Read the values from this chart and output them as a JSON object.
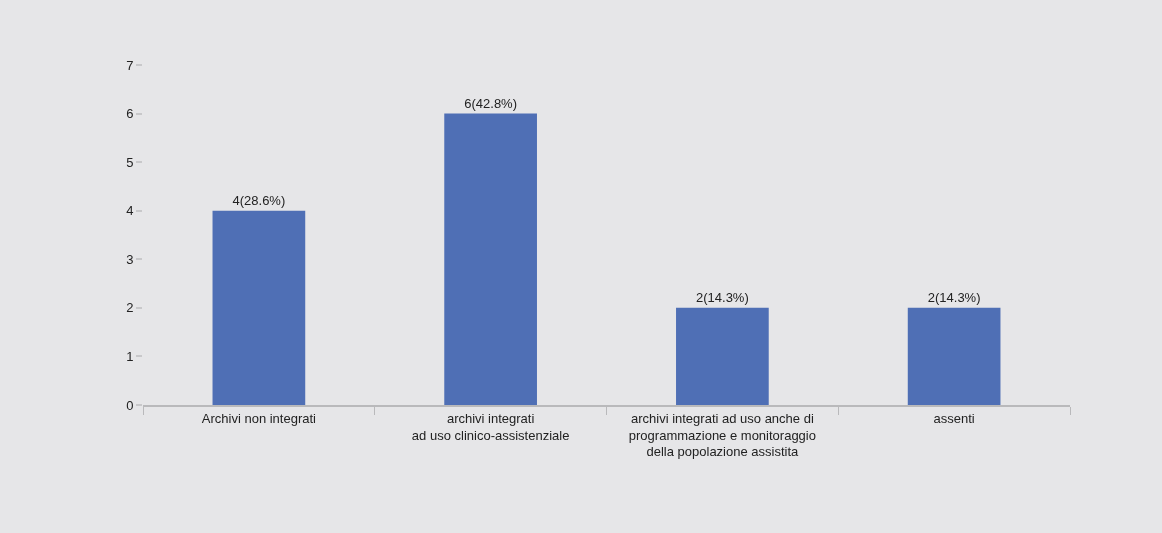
{
  "chart_data": {
    "type": "bar",
    "categories": [
      "Archivi non integrati",
      "archivi integrati\nad uso clinico-assistenziale",
      "archivi integrati ad uso anche di\nprogrammazione e monitoraggio\ndella popolazione assistita",
      "assenti"
    ],
    "values": [
      4,
      6,
      2,
      2
    ],
    "color": "#4f6fb5",
    "value_labels": [
      "4(28.6%)",
      "6(42.8%)",
      "2(14.3%)",
      "2(14.3%)"
    ],
    "ylim": [
      0,
      7
    ],
    "yticks": [
      0,
      1,
      2,
      3,
      4,
      5,
      6,
      7
    ],
    "grid": false
  }
}
